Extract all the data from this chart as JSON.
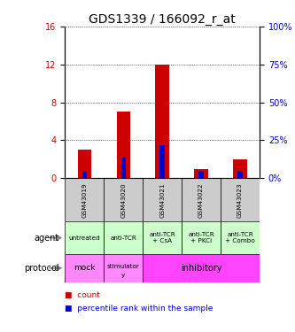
{
  "title": "GDS1339 / 166092_r_at",
  "samples": [
    "GSM43019",
    "GSM43020",
    "GSM43021",
    "GSM43022",
    "GSM43023"
  ],
  "count_values": [
    3.0,
    7.0,
    12.0,
    1.0,
    2.0
  ],
  "percentile_values": [
    5,
    14,
    22,
    5,
    5
  ],
  "ylim_left": [
    0,
    16
  ],
  "ylim_right": [
    0,
    100
  ],
  "yticks_left": [
    0,
    4,
    8,
    12,
    16
  ],
  "yticks_right": [
    0,
    25,
    50,
    75,
    100
  ],
  "count_color": "#cc0000",
  "percentile_color": "#0000cc",
  "agent_labels": [
    "untreated",
    "anti-TCR",
    "anti-TCR\n+ CsA",
    "anti-TCR\n+ PKCi",
    "anti-TCR\n+ Combo"
  ],
  "agent_bg": "#ccffcc",
  "protocol_bg_mock": "#ff88ff",
  "protocol_bg_stim": "#ff88ff",
  "protocol_bg_inhib": "#ff44ff",
  "sample_bg": "#cccccc",
  "legend_count_label": "count",
  "legend_pct_label": "percentile rank within the sample",
  "agent_label": "agent",
  "protocol_label": "protocol",
  "figure_width": 3.33,
  "figure_height": 3.75,
  "title_fontsize": 10,
  "tick_fontsize": 7,
  "table_fontsize": 6
}
